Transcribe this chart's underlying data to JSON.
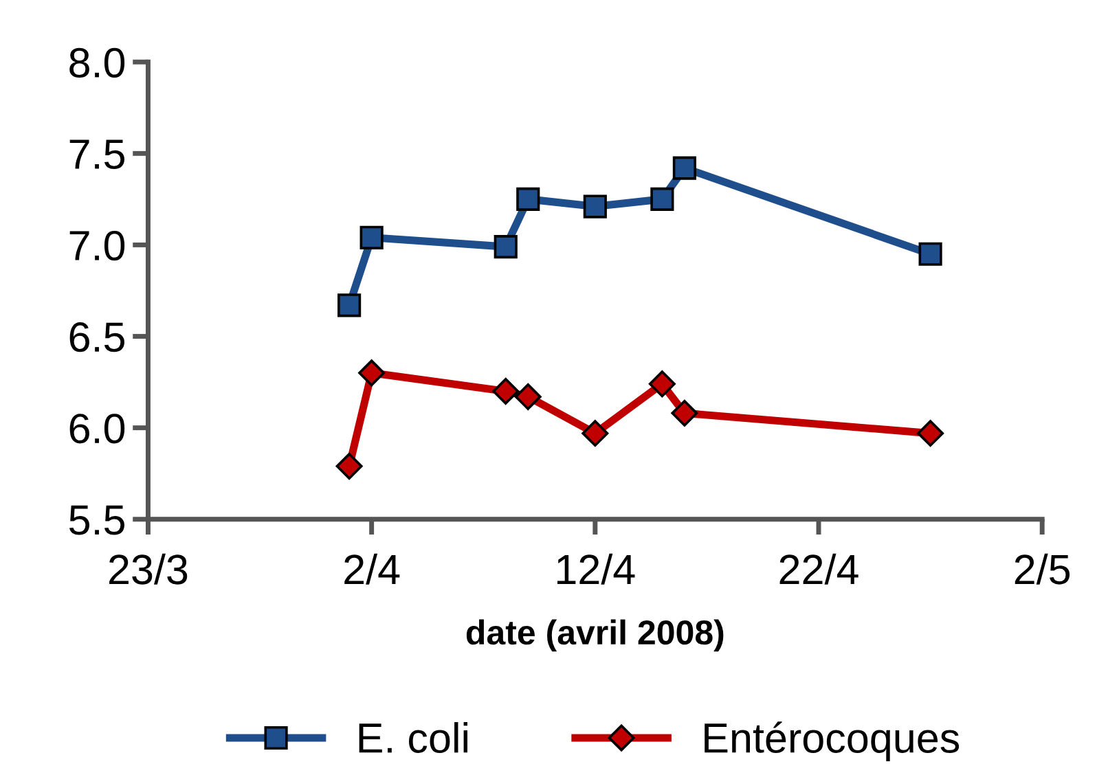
{
  "chart_data": {
    "type": "line",
    "xlabel": "date (avril 2008)",
    "x": [
      "2008-04-01",
      "2008-04-02",
      "2008-04-08",
      "2008-04-09",
      "2008-04-12",
      "2008-04-15",
      "2008-04-16",
      "2008-04-27"
    ],
    "series": [
      {
        "name": "E. coli",
        "color": "#1f4e8c",
        "marker": "square",
        "values": [
          6.67,
          7.04,
          6.99,
          7.25,
          7.21,
          7.25,
          7.42,
          6.95
        ]
      },
      {
        "name": "Entérocoques",
        "color": "#c00000",
        "marker": "diamond",
        "values": [
          5.79,
          6.3,
          6.2,
          6.17,
          5.97,
          6.24,
          6.08,
          5.97
        ]
      }
    ],
    "xlim": [
      "2008-03-23",
      "2008-05-02"
    ],
    "xticks": [
      {
        "value": "2008-03-23",
        "label": "23/3"
      },
      {
        "value": "2008-04-02",
        "label": "2/4"
      },
      {
        "value": "2008-04-12",
        "label": "12/4"
      },
      {
        "value": "2008-04-22",
        "label": "22/4"
      },
      {
        "value": "2008-05-02",
        "label": "2/5"
      }
    ],
    "ylim": [
      5.5,
      8.0
    ],
    "yticks": [
      {
        "value": 5.5,
        "label": "5.5"
      },
      {
        "value": 6.0,
        "label": "6.0"
      },
      {
        "value": 6.5,
        "label": "6.5"
      },
      {
        "value": 7.0,
        "label": "7.0"
      },
      {
        "value": 7.5,
        "label": "7.5"
      },
      {
        "value": 8.0,
        "label": "8.0"
      }
    ],
    "grid": false,
    "legend": "bottom",
    "line_style": "solid"
  }
}
